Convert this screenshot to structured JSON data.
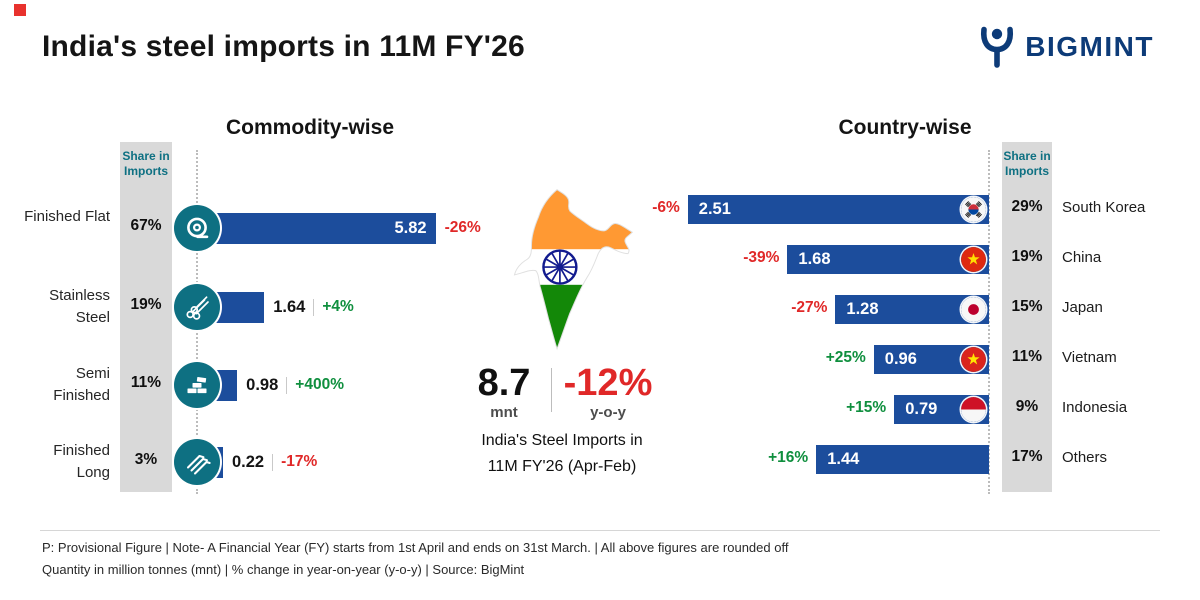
{
  "meta": {
    "title": "India's steel imports in 11M FY'26",
    "brand": "BIGMINT"
  },
  "colors": {
    "bar_blue": "#1c4d9c",
    "negative_red": "#e02828",
    "positive_green": "#0f8f3e",
    "teal": "#0e7082",
    "share_col_gray": "#d9d9d9",
    "brand_navy": "#0d3b78",
    "saffron": "#ff9933",
    "india_green": "#138808",
    "chakra_navy": "#121b8f"
  },
  "chart_data": [
    {
      "type": "bar",
      "orientation": "horizontal",
      "title": "Commodity-wise",
      "share_header": "Share in Imports",
      "unit": "mnt",
      "categories": [
        "Finished Flat",
        "Stainless Steel",
        "Semi Finished",
        "Finished Long"
      ],
      "values": [
        5.82,
        1.64,
        0.98,
        0.22
      ],
      "value_labels": [
        "5.82",
        "1.64",
        "0.98",
        "0.22"
      ],
      "shares": [
        "67%",
        "19%",
        "11%",
        "3%"
      ],
      "yoy_changes": [
        "-26%",
        "+4%",
        "+400%",
        "-17%"
      ],
      "icons": [
        "coil-icon",
        "pipes-icon",
        "billets-icon",
        "angles-icon"
      ],
      "xlim": [
        0,
        6
      ]
    },
    {
      "type": "bar",
      "orientation": "horizontal-right-aligned",
      "title": "Country-wise",
      "share_header": "Share in Imports",
      "unit": "mnt",
      "categories": [
        "South Korea",
        "China",
        "Japan",
        "Vietnam",
        "Indonesia",
        "Others"
      ],
      "values": [
        2.51,
        1.68,
        1.28,
        0.96,
        0.79,
        1.44
      ],
      "value_labels": [
        "2.51",
        "1.68",
        "1.28",
        "0.96",
        "0.79",
        "1.44"
      ],
      "shares": [
        "29%",
        "19%",
        "15%",
        "11%",
        "9%",
        "17%"
      ],
      "yoy_changes": [
        "-6%",
        "-39%",
        "-27%",
        "+25%",
        "+15%",
        "+16%"
      ],
      "flags": [
        "south-korea",
        "china",
        "japan",
        "vietnam",
        "indonesia",
        null
      ],
      "xlim": [
        0,
        2.6
      ]
    }
  ],
  "summary": {
    "total_value": "8.7",
    "total_unit": "mnt",
    "yoy_value": "-12%",
    "yoy_label": "y-o-y",
    "caption_line1": "India's Steel Imports in",
    "caption_line2": "11M FY'26 (Apr-Feb)"
  },
  "footer": {
    "line1": "P: Provisional Figure  |  Note- A Financial Year (FY) starts from 1st April and ends on 31st March.  |  All above figures are rounded off",
    "line2": "Quantity in million tonnes (mnt)  |  % change in year-on-year (y-o-y)  |  Source: BigMint"
  }
}
